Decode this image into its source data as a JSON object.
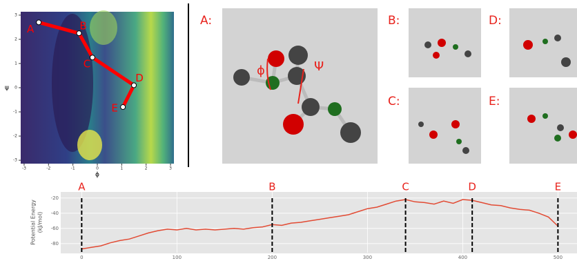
{
  "chart_data": [
    {
      "type": "path-contour",
      "xlabel": "ϕ",
      "ylabel": "ψ",
      "xlim": [
        -3.14,
        3.14
      ],
      "ylim": [
        -3.14,
        3.14
      ],
      "xticks": [
        -3,
        -2,
        -1,
        0,
        1,
        2,
        3
      ],
      "yticks": [
        -3,
        -2,
        -1,
        0,
        1,
        2,
        3
      ],
      "path": {
        "color": "#ff0000",
        "x": [
          -2.4,
          -0.75,
          -0.2,
          1.5,
          1.05
        ],
        "y": [
          2.7,
          2.25,
          1.25,
          0.1,
          -0.8
        ],
        "labels": [
          "A",
          "B",
          "C",
          "D",
          "E"
        ]
      }
    },
    {
      "type": "line",
      "ylabel": [
        "Potential Energy",
        "(kJ/mol)"
      ],
      "xlim": [
        -22,
        520
      ],
      "ylim": [
        -92,
        -12
      ],
      "xticks": [
        0,
        100,
        200,
        300,
        400,
        500
      ],
      "yticks": [
        -20,
        -40,
        -60,
        -80
      ],
      "grid": true,
      "x": [
        0,
        10,
        20,
        30,
        40,
        50,
        60,
        70,
        80,
        90,
        100,
        110,
        120,
        130,
        140,
        150,
        160,
        170,
        180,
        190,
        200,
        210,
        220,
        230,
        240,
        250,
        260,
        270,
        280,
        290,
        300,
        310,
        320,
        330,
        340,
        350,
        360,
        370,
        380,
        390,
        400,
        410,
        420,
        430,
        440,
        450,
        460,
        470,
        480,
        490,
        500
      ],
      "series": [
        {
          "color": "#e24a33",
          "values": [
            -87,
            -85,
            -83,
            -79,
            -76,
            -74,
            -70,
            -66,
            -63,
            -61,
            -62,
            -60,
            -62,
            -61,
            -62,
            -61,
            -60,
            -61,
            -59,
            -58,
            -55,
            -56,
            -53,
            -52,
            -50,
            -48,
            -46,
            -44,
            -42,
            -38,
            -34,
            -32,
            -28,
            -24,
            -22,
            -25,
            -26,
            -28,
            -24,
            -27,
            -22,
            -23,
            -26,
            -29,
            -30,
            -33,
            -35,
            -36,
            -40,
            -45,
            -57
          ]
        }
      ],
      "markers": {
        "x": [
          0,
          200,
          340,
          410,
          500
        ],
        "labels": [
          "A",
          "B",
          "C",
          "D",
          "E"
        ]
      }
    }
  ],
  "panel_labels": [
    "A:",
    "B:",
    "C:",
    "D:",
    "E:"
  ],
  "dihedral_labels": [
    "ϕ",
    "Ψ"
  ]
}
